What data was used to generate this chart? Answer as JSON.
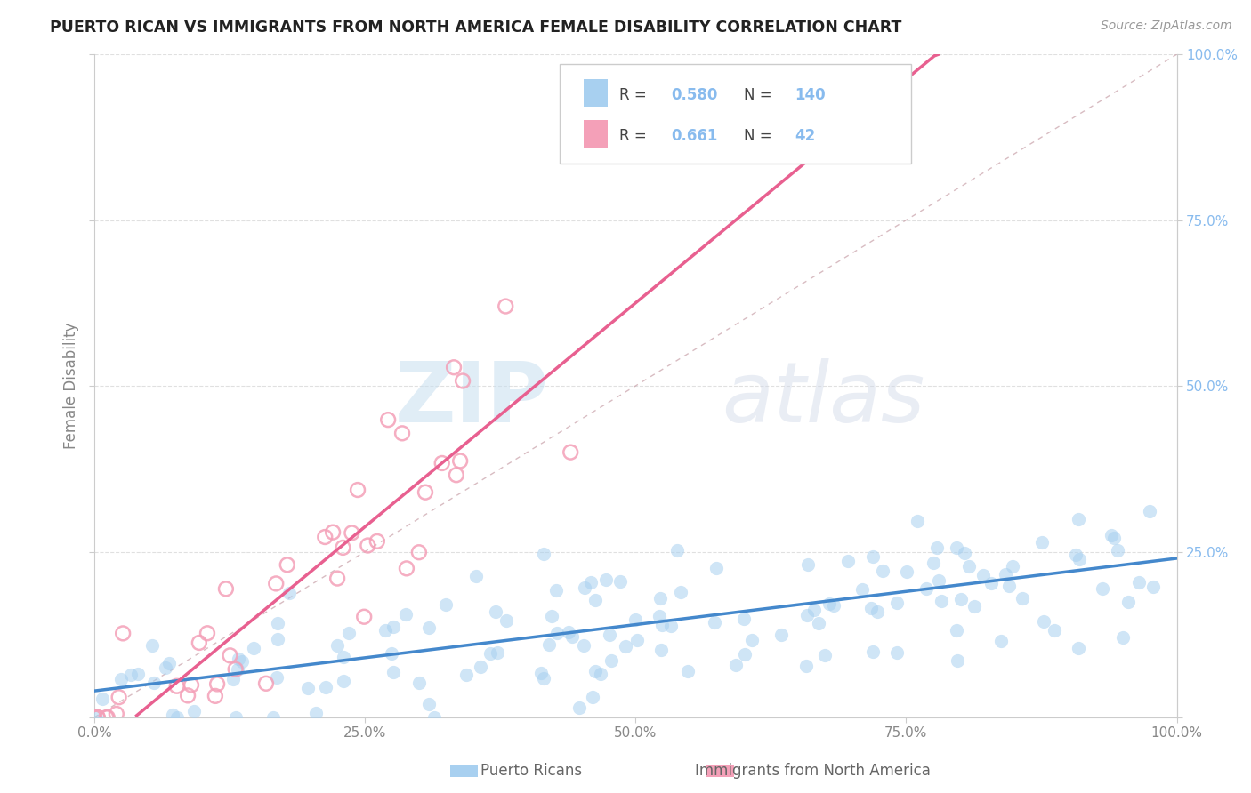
{
  "title": "PUERTO RICAN VS IMMIGRANTS FROM NORTH AMERICA FEMALE DISABILITY CORRELATION CHART",
  "source": "Source: ZipAtlas.com",
  "ylabel": "Female Disability",
  "legend_label_1": "Puerto Ricans",
  "legend_label_2": "Immigrants from North America",
  "R1": 0.58,
  "N1": 140,
  "R2": 0.661,
  "N2": 42,
  "color1": "#a8d0f0",
  "color2": "#f4a0b8",
  "trendline1_color": "#4488cc",
  "trendline2_color": "#e86090",
  "refline_color": "#c8a0a8",
  "background": "#ffffff",
  "xlim": [
    0,
    1
  ],
  "ylim": [
    0,
    1
  ],
  "xticks": [
    0.0,
    0.25,
    0.5,
    0.75,
    1.0
  ],
  "yticks": [
    0.0,
    0.25,
    0.5,
    0.75,
    1.0
  ],
  "xtick_labels": [
    "0.0%",
    "25.0%",
    "50.0%",
    "75.0%",
    "100.0%"
  ],
  "ytick_labels_right": [
    "",
    "25.0%",
    "50.0%",
    "75.0%",
    "100.0%"
  ],
  "watermark_zip": "ZIP",
  "watermark_atlas": "atlas",
  "blue_intercept": 0.04,
  "blue_slope": 0.2,
  "pink_intercept": -0.05,
  "pink_slope": 1.35,
  "grid_color": "#dddddd",
  "tick_color_right": "#88bbee",
  "tick_color_x": "#888888",
  "title_color": "#222222",
  "source_color": "#999999",
  "ylabel_color": "#888888"
}
